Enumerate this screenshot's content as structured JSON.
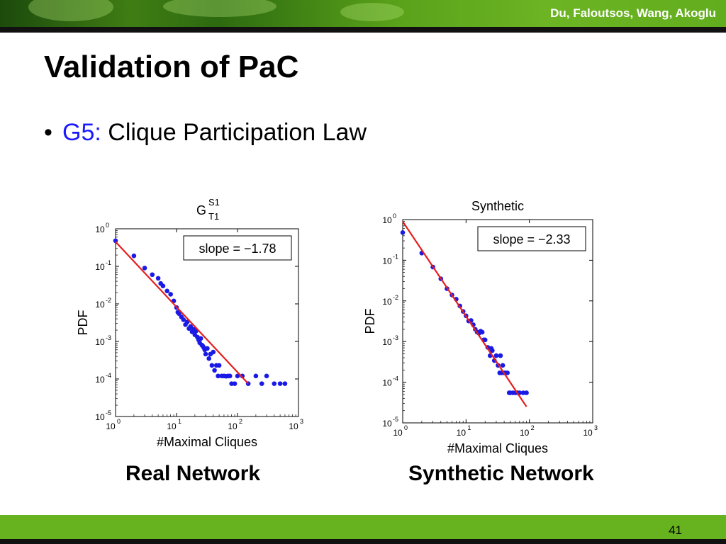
{
  "header": {
    "authors": "Du, Faloutsos, Wang, Akoglu"
  },
  "slide": {
    "title": "Validation of PaC",
    "bullet": {
      "prefix": "G5:",
      "text": "Clique Participation Law"
    },
    "page_number": "41"
  },
  "captions": {
    "left": "Real Network",
    "right": "Synthetic Network"
  },
  "colors": {
    "accent_green": "#66b21f",
    "points": "#1a1ae6",
    "fit_line": "#e61e1e",
    "bullet_prefix": "#1a1aff"
  },
  "chart_data": [
    {
      "type": "scatter",
      "title": "G",
      "title_sup": "S1",
      "title_sub": "T1",
      "xlabel": "#Maximal Cliques",
      "ylabel": "PDF",
      "xscale": "log",
      "yscale": "log",
      "xlim": [
        1,
        1000
      ],
      "ylim": [
        1e-05,
        1
      ],
      "xticks": [
        {
          "base": "10",
          "exp": "0"
        },
        {
          "base": "10",
          "exp": "1"
        },
        {
          "base": "10",
          "exp": "2"
        },
        {
          "base": "10",
          "exp": "3"
        }
      ],
      "yticks": [
        {
          "base": "10",
          "exp": "0"
        },
        {
          "base": "10",
          "exp": "-1"
        },
        {
          "base": "10",
          "exp": "-2"
        },
        {
          "base": "10",
          "exp": "-3"
        },
        {
          "base": "10",
          "exp": "-4"
        },
        {
          "base": "10",
          "exp": "-5"
        }
      ],
      "annotation": "slope = −1.78",
      "fit_line": {
        "x": [
          1,
          150
        ],
        "y": [
          0.45,
          7.5e-05
        ]
      },
      "series": [
        {
          "x": [
            1,
            2,
            3,
            4,
            5,
            5.5,
            6,
            7,
            8,
            9,
            10,
            10.5,
            11,
            12,
            13,
            14,
            15,
            16,
            17,
            18,
            19,
            20,
            21,
            22,
            23,
            24,
            25,
            26,
            27,
            28,
            29,
            30,
            32,
            34,
            36,
            38,
            40,
            42,
            45,
            48,
            50,
            55,
            60,
            65,
            70,
            75,
            80,
            90,
            100,
            120,
            150,
            200,
            250,
            300,
            400,
            500,
            600
          ],
          "y": [
            0.48,
            0.19,
            0.09,
            0.06,
            0.048,
            0.035,
            0.03,
            0.022,
            0.018,
            0.012,
            0.008,
            0.006,
            0.0055,
            0.0045,
            0.0038,
            0.0028,
            0.0033,
            0.0022,
            0.0025,
            0.0018,
            0.0021,
            0.0015,
            0.0019,
            0.0013,
            0.0011,
            0.00092,
            0.0012,
            0.0008,
            0.00075,
            0.00068,
            0.0006,
            0.00046,
            0.00065,
            0.00035,
            0.00046,
            0.00023,
            0.00052,
            0.00017,
            0.00023,
            0.00012,
            0.00023,
            0.00012,
            0.00012,
            0.000118,
            0.00012,
            0.00012,
            7.5e-05,
            7.5e-05,
            0.00012,
            0.00012,
            7.5e-05,
            0.00012,
            7.5e-05,
            0.00012,
            7.5e-05,
            7.5e-05,
            7.5e-05
          ]
        }
      ]
    },
    {
      "type": "scatter",
      "title": "Synthetic",
      "xlabel": "#Maximal Cliques",
      "ylabel": "PDF",
      "xscale": "log",
      "yscale": "log",
      "xlim": [
        1,
        1000
      ],
      "ylim": [
        1e-05,
        1
      ],
      "xticks": [
        {
          "base": "10",
          "exp": "0"
        },
        {
          "base": "10",
          "exp": "1"
        },
        {
          "base": "10",
          "exp": "2"
        },
        {
          "base": "10",
          "exp": "3"
        }
      ],
      "yticks": [
        {
          "base": "10",
          "exp": "0"
        },
        {
          "base": "10",
          "exp": "-1"
        },
        {
          "base": "10",
          "exp": "-2"
        },
        {
          "base": "10",
          "exp": "-3"
        },
        {
          "base": "10",
          "exp": "-4"
        },
        {
          "base": "10",
          "exp": "-5"
        }
      ],
      "annotation": "slope = −2.33",
      "fit_line": {
        "x": [
          1,
          90
        ],
        "y": [
          0.9,
          2.5e-05
        ]
      },
      "series": [
        {
          "x": [
            1,
            2,
            3,
            4,
            5,
            6,
            7,
            8,
            9,
            10,
            11,
            12,
            13,
            14,
            15,
            16,
            17,
            18,
            19,
            20,
            22,
            24,
            25,
            26,
            28,
            30,
            32,
            34,
            35,
            36,
            38,
            40,
            42,
            45,
            48,
            50,
            55,
            60,
            65,
            70,
            80,
            90
          ],
          "y": [
            0.48,
            0.15,
            0.068,
            0.035,
            0.02,
            0.014,
            0.011,
            0.0075,
            0.0055,
            0.0043,
            0.0032,
            0.0033,
            0.0026,
            0.002,
            0.0017,
            0.0016,
            0.0018,
            0.0017,
            0.0011,
            0.0011,
            0.00072,
            0.00045,
            0.00068,
            0.0006,
            0.00034,
            0.00045,
            0.00026,
            0.00017,
            0.00045,
            0.00017,
            0.00026,
            0.00017,
            0.00017,
            0.00017,
            5.5e-05,
            5.5e-05,
            5.5e-05,
            5.5e-05,
            5.5e-05,
            5.5e-05,
            5.5e-05,
            5.5e-05
          ]
        }
      ]
    }
  ]
}
